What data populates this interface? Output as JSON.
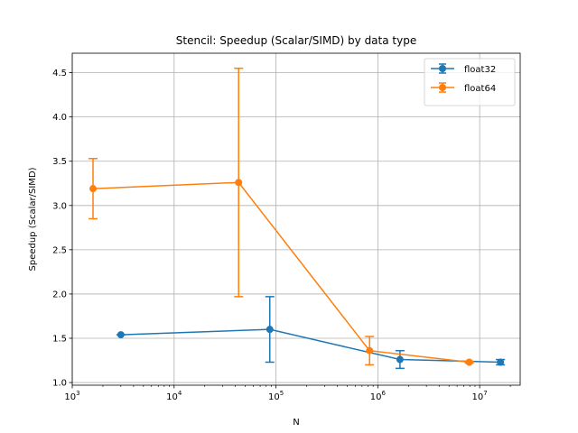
{
  "chart_data": {
    "type": "line",
    "title": "Stencil: Speedup (Scalar/SIMD) by data type",
    "xlabel": "N",
    "ylabel": "Speedup (Scalar/SIMD)",
    "xscale": "log",
    "xlim": [
      1000,
      25000000
    ],
    "ylim": [
      0.97,
      4.72
    ],
    "x_ticks": [
      {
        "value": 1000,
        "base": "10",
        "exp": "3"
      },
      {
        "value": 10000,
        "base": "10",
        "exp": "4"
      },
      {
        "value": 100000,
        "base": "10",
        "exp": "5"
      },
      {
        "value": 1000000,
        "base": "10",
        "exp": "6"
      },
      {
        "value": 10000000,
        "base": "10",
        "exp": "7"
      }
    ],
    "y_ticks": [
      {
        "value": 1.0,
        "label": "1.0"
      },
      {
        "value": 1.5,
        "label": "1.5"
      },
      {
        "value": 2.0,
        "label": "2.0"
      },
      {
        "value": 2.5,
        "label": "2.5"
      },
      {
        "value": 3.0,
        "label": "3.0"
      },
      {
        "value": 3.5,
        "label": "3.5"
      },
      {
        "value": 4.0,
        "label": "4.0"
      },
      {
        "value": 4.5,
        "label": "4.5"
      }
    ],
    "grid": true,
    "legend": "top-right",
    "series": [
      {
        "name": "float32",
        "color": "#1f77b4",
        "points": [
          {
            "x": 3000,
            "y": 1.54,
            "err": 0.0
          },
          {
            "x": 87000,
            "y": 1.6,
            "err": 0.37
          },
          {
            "x": 1650000,
            "y": 1.26,
            "err": 0.1
          },
          {
            "x": 16000000,
            "y": 1.23,
            "err": 0.03
          }
        ]
      },
      {
        "name": "float64",
        "color": "#ff7f0e",
        "points": [
          {
            "x": 1600,
            "y": 3.19,
            "err": 0.34
          },
          {
            "x": 43000,
            "y": 3.26,
            "err": 1.29
          },
          {
            "x": 830000,
            "y": 1.36,
            "err": 0.16
          },
          {
            "x": 7900000,
            "y": 1.23,
            "err": 0.01
          }
        ]
      }
    ]
  }
}
